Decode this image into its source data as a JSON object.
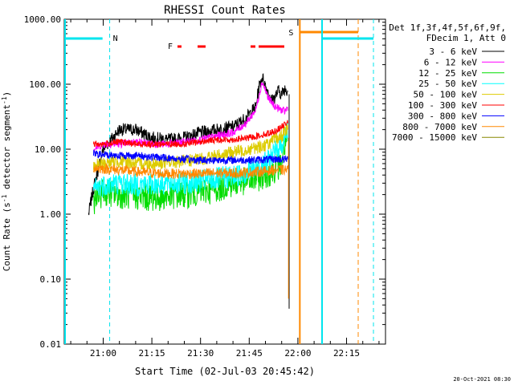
{
  "chart_data": {
    "type": "line",
    "title": "RHESSI Count Rates",
    "xlabel": "Start Time (02-Jul-03 20:45:42)",
    "ylabel_main": "Count Rate (s",
    "ylabel_sup1": "-1",
    "ylabel_mid": " detector segment",
    "ylabel_sup2": "-1",
    "ylabel_end": ")",
    "y_scale": "log",
    "ylim": [
      0.01,
      1000
    ],
    "xlim_minutes": [
      -12,
      42
    ],
    "x_ticks": [
      {
        "t": 0,
        "label": "21:00"
      },
      {
        "t": 15,
        "label": "21:15"
      },
      {
        "t": 30,
        "label": "21:30"
      },
      {
        "t": 45,
        "label": "21:45"
      },
      {
        "t": 60,
        "label": "22:00"
      },
      {
        "t": 75,
        "label": "22:15"
      }
    ],
    "y_ticks": [
      {
        "v": 0.01,
        "label": "0.01"
      },
      {
        "v": 0.1,
        "label": "0.10"
      },
      {
        "v": 1,
        "label": "1.00"
      },
      {
        "v": 10,
        "label": "10.00"
      },
      {
        "v": 100,
        "label": "100.00"
      },
      {
        "v": 1000,
        "label": "1000.00"
      }
    ],
    "legend_header": [
      "Det 1f,3f,4f,5f,6f,9f,",
      "FDecim 1, Att 0"
    ],
    "legend_position": "right",
    "series": [
      {
        "name": "3 - 6 keV",
        "color": "#000000",
        "points": [
          [
            -4.5,
            1.0
          ],
          [
            -3,
            2.5
          ],
          [
            0,
            10
          ],
          [
            5,
            20
          ],
          [
            10,
            20
          ],
          [
            15,
            15
          ],
          [
            20,
            14
          ],
          [
            25,
            15
          ],
          [
            30,
            18
          ],
          [
            35,
            20
          ],
          [
            40,
            22
          ],
          [
            44,
            30
          ],
          [
            47,
            45
          ],
          [
            48,
            90
          ],
          [
            49,
            130
          ],
          [
            51,
            70
          ],
          [
            52,
            55
          ],
          [
            53,
            65
          ],
          [
            54,
            80
          ],
          [
            55,
            70
          ],
          [
            56,
            85
          ],
          [
            57,
            80
          ]
        ]
      },
      {
        "name": "6 - 12 keV",
        "color": "#ff00ff",
        "points": [
          [
            -3,
            10
          ],
          [
            0,
            12
          ],
          [
            5,
            12
          ],
          [
            10,
            13
          ],
          [
            15,
            12
          ],
          [
            20,
            12
          ],
          [
            25,
            13
          ],
          [
            30,
            14
          ],
          [
            35,
            16
          ],
          [
            40,
            18
          ],
          [
            44,
            25
          ],
          [
            47,
            40
          ],
          [
            49,
            110
          ],
          [
            51,
            60
          ],
          [
            53,
            45
          ],
          [
            55,
            40
          ],
          [
            56,
            38
          ],
          [
            57,
            45
          ]
        ]
      },
      {
        "name": "12 - 25 keV",
        "color": "#00dd00",
        "points": [
          [
            -3,
            1.6
          ],
          [
            0,
            2.2
          ],
          [
            5,
            2.0
          ],
          [
            10,
            1.9
          ],
          [
            15,
            1.8
          ],
          [
            20,
            1.9
          ],
          [
            25,
            2.0
          ],
          [
            30,
            2.2
          ],
          [
            35,
            2.5
          ],
          [
            40,
            3.0
          ],
          [
            45,
            3.3
          ],
          [
            50,
            4.0
          ],
          [
            53,
            5
          ],
          [
            55,
            6
          ],
          [
            56,
            12
          ],
          [
            57,
            18
          ]
        ]
      },
      {
        "name": "25 - 50 keV",
        "color": "#00ffff",
        "points": [
          [
            -3,
            2.4
          ],
          [
            0,
            2.8
          ],
          [
            5,
            3.0
          ],
          [
            10,
            2.8
          ],
          [
            15,
            2.9
          ],
          [
            20,
            3.0
          ],
          [
            25,
            3.0
          ],
          [
            30,
            3.2
          ],
          [
            35,
            3.5
          ],
          [
            40,
            3.8
          ],
          [
            45,
            4.5
          ],
          [
            50,
            6.0
          ],
          [
            53,
            9
          ],
          [
            55,
            12
          ],
          [
            56,
            15
          ],
          [
            57,
            20
          ]
        ]
      },
      {
        "name": "50 - 100 keV",
        "color": "#ddcc00",
        "points": [
          [
            -3,
            5.5
          ],
          [
            0,
            6.0
          ],
          [
            5,
            6.5
          ],
          [
            10,
            6.0
          ],
          [
            15,
            6.0
          ],
          [
            20,
            6.2
          ],
          [
            25,
            6.5
          ],
          [
            30,
            7.0
          ],
          [
            35,
            8.0
          ],
          [
            40,
            9.0
          ],
          [
            45,
            10.0
          ],
          [
            50,
            11.5
          ],
          [
            53,
            14
          ],
          [
            55,
            16
          ],
          [
            56,
            18
          ],
          [
            57,
            22
          ]
        ]
      },
      {
        "name": "100 - 300 keV",
        "color": "#ff0000",
        "points": [
          [
            -3,
            12
          ],
          [
            0,
            12
          ],
          [
            5,
            13
          ],
          [
            10,
            12
          ],
          [
            15,
            12
          ],
          [
            20,
            12
          ],
          [
            25,
            12
          ],
          [
            30,
            13
          ],
          [
            35,
            14
          ],
          [
            40,
            14
          ],
          [
            45,
            15
          ],
          [
            50,
            17
          ],
          [
            53,
            19
          ],
          [
            55,
            22
          ],
          [
            56,
            24
          ],
          [
            57,
            28
          ]
        ]
      },
      {
        "name": "300 - 800 keV",
        "color": "#0000ff",
        "points": [
          [
            -3,
            8.5
          ],
          [
            0,
            8.2
          ],
          [
            5,
            8.0
          ],
          [
            10,
            8.0
          ],
          [
            15,
            7.6
          ],
          [
            20,
            7.3
          ],
          [
            25,
            7.0
          ],
          [
            30,
            6.8
          ],
          [
            35,
            6.8
          ],
          [
            40,
            6.8
          ],
          [
            45,
            6.8
          ],
          [
            50,
            6.9
          ],
          [
            53,
            7.0
          ],
          [
            55,
            7.0
          ],
          [
            57,
            7.0
          ]
        ]
      },
      {
        "name": "800 - 7000 keV",
        "color": "#ff8800",
        "points": [
          [
            -3,
            5.2
          ],
          [
            0,
            5.0
          ],
          [
            5,
            4.8
          ],
          [
            10,
            4.5
          ],
          [
            15,
            4.3
          ],
          [
            20,
            4.2
          ],
          [
            25,
            4.2
          ],
          [
            30,
            4.2
          ],
          [
            35,
            4.3
          ],
          [
            40,
            4.3
          ],
          [
            45,
            4.4
          ],
          [
            50,
            4.6
          ],
          [
            53,
            4.8
          ],
          [
            55,
            4.8
          ],
          [
            57,
            4.8
          ]
        ]
      },
      {
        "name": "7000 - 15000 keV",
        "color": "#888800",
        "points": []
      }
    ],
    "markers": [
      {
        "label": "N",
        "t": 2,
        "color": "#00e5ee"
      },
      {
        "label": "F",
        "t": 27,
        "color": "#ff0000"
      },
      {
        "label": "S",
        "t": 61,
        "color": "#ff8800"
      }
    ],
    "footer_date": "20-Oct-2021 08:30"
  }
}
